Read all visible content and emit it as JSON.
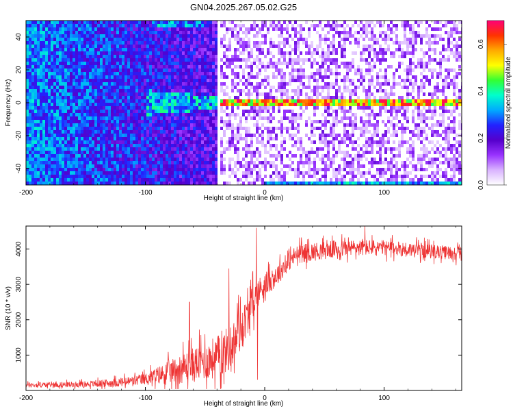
{
  "figure_title": "GN04.2025.267.05.02.G25",
  "chart_data": [
    {
      "type": "heatmap",
      "title": "GN04.2025.267.05.02.G25",
      "xlabel": "Height of straight line (km)",
      "ylabel": "Frequency (Hz)",
      "xlim": [
        -200,
        165
      ],
      "ylim": [
        -50,
        50
      ],
      "xticks": [
        -200,
        -100,
        0,
        100
      ],
      "yticks": [
        -40,
        -20,
        0,
        20,
        40
      ],
      "colorbar": {
        "label": "Normalized spectral amplitude",
        "range": [
          0,
          0.7
        ],
        "ticks": [
          "0.0",
          "0.2",
          "0.4",
          "0.6"
        ],
        "colormap": [
          "#ffffff",
          "#d9b3ff",
          "#9933ff",
          "#5500cc",
          "#2222ff",
          "#00aaff",
          "#00ffcc",
          "#33ff33",
          "#ffff00",
          "#ffaa00",
          "#ff3300",
          "#ff0077"
        ]
      },
      "features": {
        "data_gap_x": -38,
        "signal_line": {
          "frequency_hz": 0,
          "x_start": -40,
          "x_end": 165
        },
        "noise_region_x": [
          -200,
          -38
        ],
        "bright_noise_band_top_x": [
          -95,
          -50
        ],
        "bright_noise_band_bottom_x": [
          0,
          165
        ]
      },
      "grid": false,
      "legend": "none"
    },
    {
      "type": "line",
      "xlabel": "Height of straight line (km)",
      "ylabel": "SNR (10 * v/v)",
      "xlim": [
        -200,
        165
      ],
      "ylim": [
        0,
        4650
      ],
      "xticks": [
        -200,
        -100,
        0,
        100
      ],
      "yticks": [
        1000,
        2000,
        3000,
        4000
      ],
      "color": "#ee3333",
      "series": [
        {
          "trend_x": [
            -200,
            -180,
            -160,
            -140,
            -120,
            -110,
            -100,
            -90,
            -80,
            -70,
            -60,
            -50,
            -40,
            -35,
            -30,
            -25,
            -20,
            -15,
            -10,
            -5,
            0,
            5,
            10,
            15,
            20,
            25,
            30,
            40,
            50,
            60,
            70,
            80,
            90,
            100,
            110,
            120,
            130,
            140,
            150,
            165
          ],
          "trend_y": [
            150,
            160,
            170,
            190,
            230,
            270,
            330,
            420,
            520,
            620,
            720,
            830,
            950,
            1050,
            1200,
            1400,
            1700,
            2100,
            2500,
            2800,
            3000,
            3100,
            3250,
            3450,
            3650,
            3800,
            3880,
            3920,
            3960,
            4000,
            4020,
            4040,
            4040,
            4030,
            4010,
            3990,
            3960,
            3930,
            3900,
            3880
          ],
          "noise_envelope_x": [
            -200,
            -150,
            -100,
            -60,
            -30,
            -10,
            0,
            20,
            60,
            100,
            165
          ],
          "noise_envelope_y": [
            120,
            150,
            300,
            900,
            1200,
            900,
            600,
            500,
            450,
            400,
            350
          ],
          "spikes": [
            {
              "x": -63,
              "y": 2500
            },
            {
              "x": -30,
              "y": 3450
            },
            {
              "x": -22,
              "y": 2700
            },
            {
              "x": -7,
              "y": 4600
            },
            {
              "x": -6,
              "y": 300
            },
            {
              "x": 84,
              "y": 4650
            }
          ]
        }
      ],
      "grid": false,
      "legend": "none"
    }
  ]
}
